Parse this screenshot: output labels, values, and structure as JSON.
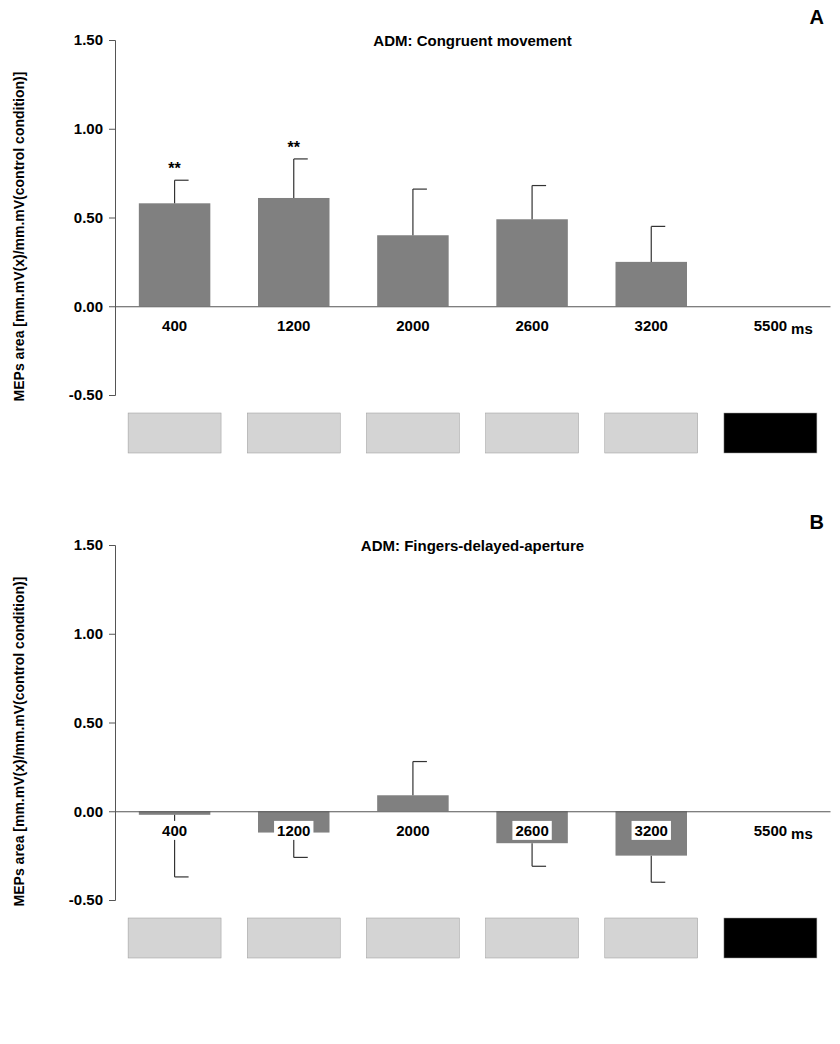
{
  "chart_data": [
    {
      "type": "bar",
      "title": "ADM: Congruent movement",
      "panel_label": "A",
      "ylabel": "MEPs area [mm.mV(x)/mm.mV(control condition)]",
      "xlabel": "ms",
      "categories": [
        "400",
        "1200",
        "2000",
        "2600",
        "3200",
        "5500"
      ],
      "values": [
        0.58,
        0.61,
        0.4,
        0.49,
        0.25,
        null
      ],
      "errors": [
        0.13,
        0.22,
        0.26,
        0.19,
        0.2,
        null
      ],
      "annotations": [
        {
          "category": "400",
          "text": "**"
        },
        {
          "category": "1200",
          "text": "**"
        }
      ],
      "color": "#808080",
      "ylim": [
        -0.5,
        1.5
      ],
      "yticks": [
        {
          "value": -0.5,
          "label": "-0.50"
        },
        {
          "value": 0,
          "label": "0.00"
        },
        {
          "value": 0.5,
          "label": "0.50"
        },
        {
          "value": 1,
          "label": "1.00"
        },
        {
          "value": 1.5,
          "label": "1.50"
        }
      ],
      "grid": false
    },
    {
      "type": "bar",
      "title": "ADM: Fingers-delayed-aperture",
      "panel_label": "B",
      "ylabel": "MEPs area [mm.mV(x)/mm.mV(control condition)]",
      "xlabel": "ms",
      "categories": [
        "400",
        "1200",
        "2000",
        "2600",
        "3200",
        "5500"
      ],
      "values": [
        -0.02,
        -0.12,
        0.09,
        -0.18,
        -0.25,
        null
      ],
      "errors": [
        0.35,
        0.14,
        0.19,
        0.13,
        0.15,
        null
      ],
      "color": "#808080",
      "ylim": [
        -0.5,
        1.5
      ],
      "yticks": [
        {
          "value": -0.5,
          "label": "-0.50"
        },
        {
          "value": 0,
          "label": "0.00"
        },
        {
          "value": 0.5,
          "label": "0.50"
        },
        {
          "value": 1,
          "label": "1.00"
        },
        {
          "value": 1.5,
          "label": "1.50"
        }
      ],
      "grid": false
    }
  ]
}
